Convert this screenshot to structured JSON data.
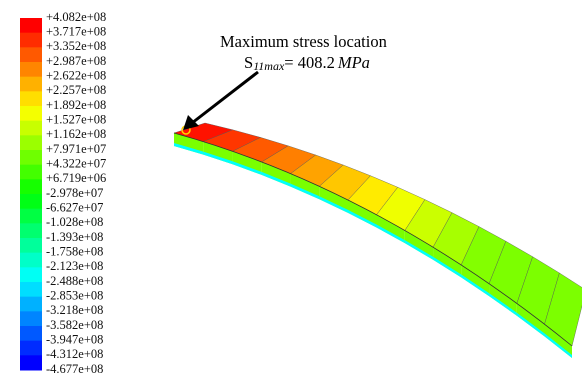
{
  "legend": {
    "labels": [
      "+4.082e+08",
      "+3.717e+08",
      "+3.352e+08",
      "+2.987e+08",
      "+2.622e+08",
      "+2.257e+08",
      "+1.892e+08",
      "+1.527e+08",
      "+1.162e+08",
      "+7.971e+07",
      "+4.322e+07",
      "+6.719e+06",
      "-2.978e+07",
      "-6.627e+07",
      "-1.028e+08",
      "-1.393e+08",
      "-1.758e+08",
      "-2.123e+08",
      "-2.488e+08",
      "-2.853e+08",
      "-3.218e+08",
      "-3.582e+08",
      "-3.947e+08",
      "-4.312e+08",
      "-4.677e+08"
    ]
  },
  "annotation": {
    "title": "Maximum stress location",
    "symbol": "S",
    "subscript": "11max",
    "equals": "= 408.2",
    "unit": "MPa"
  }
}
